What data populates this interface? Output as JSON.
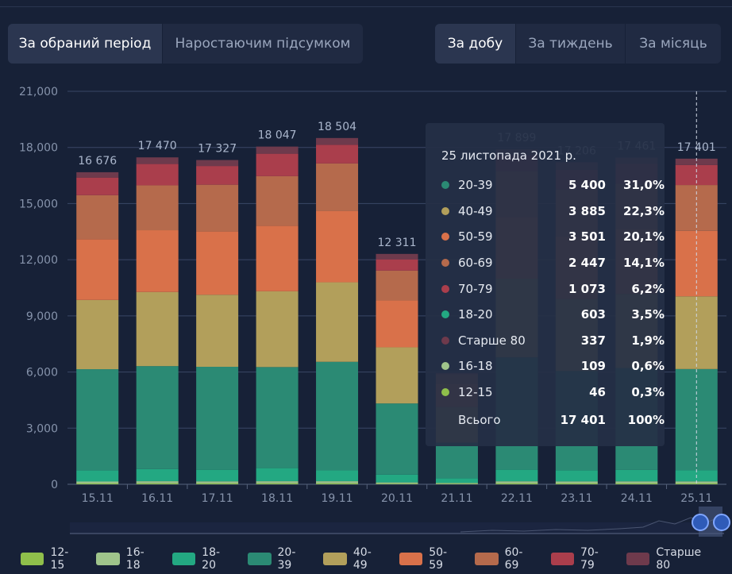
{
  "left_tabs": [
    {
      "label": "За обраний період",
      "active": true
    },
    {
      "label": "Наростаючим підсумком",
      "active": false
    }
  ],
  "right_tabs": [
    {
      "label": "За добу",
      "active": true
    },
    {
      "label": "За тиждень",
      "active": false
    },
    {
      "label": "За місяць",
      "active": false
    }
  ],
  "chart_data": {
    "type": "bar",
    "stacked": true,
    "categories": [
      "15.11",
      "16.11",
      "17.11",
      "18.11",
      "19.11",
      "20.11",
      "21.11",
      "22.11",
      "23.11",
      "24.11",
      "25.11"
    ],
    "totals": [
      "16 676",
      "17 470",
      "17 327",
      "18 047",
      "18 504",
      "12 311",
      "",
      "17 899",
      "17 206",
      "17 461",
      "17 401"
    ],
    "ylim": [
      0,
      21000
    ],
    "yticks": [
      "0",
      "3,000",
      "6,000",
      "9,000",
      "12,000",
      "15,000",
      "18,000",
      "21,000"
    ],
    "grid": true,
    "legend_position": "bottom",
    "series": [
      {
        "name": "12-15",
        "color": "#8fbf4b",
        "values": [
          45,
          50,
          48,
          50,
          50,
          30,
          25,
          48,
          46,
          47,
          46
        ]
      },
      {
        "name": "16-18",
        "color": "#9fc48b",
        "values": [
          105,
          115,
          110,
          115,
          115,
          70,
          50,
          112,
          108,
          110,
          109
        ]
      },
      {
        "name": "18-20",
        "color": "#23a882",
        "values": [
          600,
          650,
          620,
          700,
          580,
          420,
          250,
          620,
          600,
          610,
          603
        ]
      },
      {
        "name": "20-39",
        "color": "#2b8a74",
        "values": [
          5400,
          5500,
          5500,
          5400,
          5800,
          3800,
          1900,
          6000,
          5300,
          5450,
          5400
        ]
      },
      {
        "name": "40-49",
        "color": "#b29f5b",
        "values": [
          3700,
          3960,
          3850,
          4050,
          4250,
          3000,
          1900,
          4200,
          3850,
          3950,
          3885
        ]
      },
      {
        "name": "50-59",
        "color": "#d9714a",
        "values": [
          3250,
          3300,
          3380,
          3500,
          3800,
          2500,
          1250,
          3300,
          3350,
          3480,
          3501
        ]
      },
      {
        "name": "60-69",
        "color": "#b56a4c",
        "values": [
          2350,
          2400,
          2500,
          2650,
          2550,
          1600,
          500,
          2450,
          2500,
          2420,
          2447
        ]
      },
      {
        "name": "70-79",
        "color": "#aa3e4c",
        "values": [
          940,
          1140,
          1000,
          1200,
          1000,
          600,
          50,
          870,
          1050,
          1070,
          1073
        ]
      },
      {
        "name": "Старше 80",
        "color": "#6e3a4c",
        "values": [
          286,
          355,
          319,
          382,
          359,
          291,
          25,
          299,
          402,
          324,
          337
        ]
      }
    ]
  },
  "tooltip": {
    "date": "25 листопада 2021 р.",
    "rows": [
      {
        "label": "20-39",
        "count": "5 400",
        "pct": "31,0%",
        "color": "#2b8a74"
      },
      {
        "label": "40-49",
        "count": "3 885",
        "pct": "22,3%",
        "color": "#b29f5b"
      },
      {
        "label": "50-59",
        "count": "3 501",
        "pct": "20,1%",
        "color": "#d9714a"
      },
      {
        "label": "60-69",
        "count": "2 447",
        "pct": "14,1%",
        "color": "#b56a4c"
      },
      {
        "label": "70-79",
        "count": "1 073",
        "pct": "6,2%",
        "color": "#aa3e4c"
      },
      {
        "label": "18-20",
        "count": "603",
        "pct": "3,5%",
        "color": "#23a882"
      },
      {
        "label": "Старше 80",
        "count": "337",
        "pct": "1,9%",
        "color": "#6e3a4c"
      },
      {
        "label": "16-18",
        "count": "109",
        "pct": "0,6%",
        "color": "#9fc48b"
      },
      {
        "label": "12-15",
        "count": "46",
        "pct": "0,3%",
        "color": "#8fbf4b"
      }
    ],
    "total_label": "Всього",
    "total_count": "17 401",
    "total_pct": "100%"
  }
}
